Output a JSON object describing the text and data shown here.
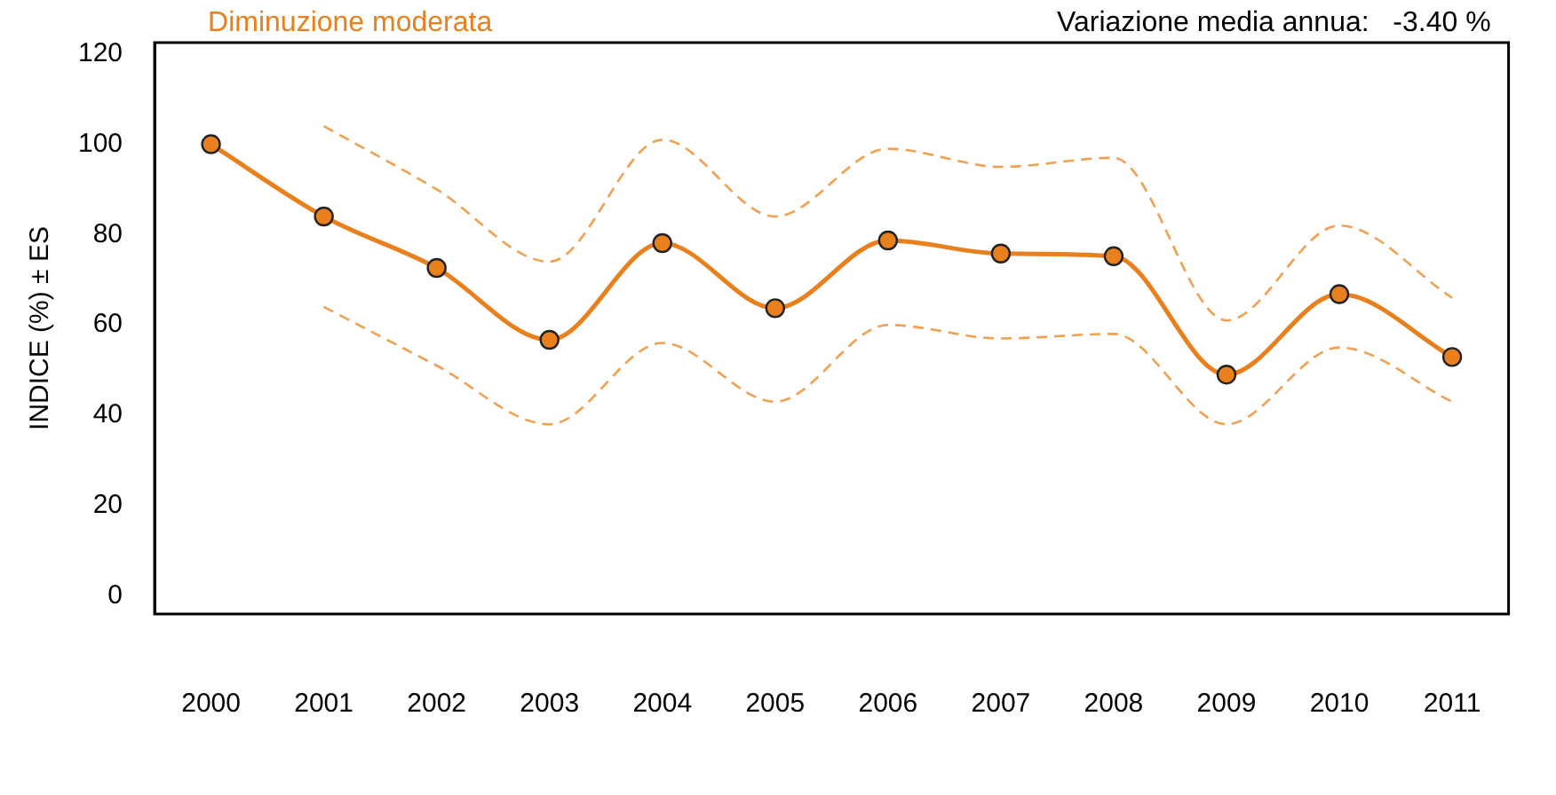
{
  "chart_data": {
    "type": "line",
    "title": "Diminuzione moderata",
    "ylabel": "INDICE (%) ± ES",
    "annotations": [
      "Variazione media annua:   -3.40 %"
    ],
    "categories": [
      "2000",
      "2001",
      "2002",
      "2003",
      "2004",
      "2005",
      "2006",
      "2007",
      "2008",
      "2009",
      "2010",
      "2011"
    ],
    "series": [
      {
        "color": "#e8801e",
        "values": [
          100,
          84,
          72.6,
          56.7,
          78.1,
          63.7,
          78.7,
          75.8,
          75.2,
          49,
          66.8,
          52.9
        ]
      },
      {
        "color": "#f0a050",
        "line_style": "dashed",
        "marker": "none",
        "values": [
          null,
          104,
          90,
          74,
          101,
          84,
          99,
          95,
          97,
          61,
          82,
          66
        ]
      },
      {
        "color": "#f0a050",
        "line_style": "dashed",
        "marker": "none",
        "values": [
          null,
          64,
          51,
          38,
          56,
          43,
          60,
          57,
          58,
          38,
          55,
          43
        ]
      }
    ],
    "ylim": [
      -4,
      122.5
    ],
    "yticks": [
      0,
      20,
      40,
      60,
      80,
      100,
      120
    ],
    "grid": false,
    "legend": false,
    "marker": "circle",
    "line_style": "solid"
  }
}
